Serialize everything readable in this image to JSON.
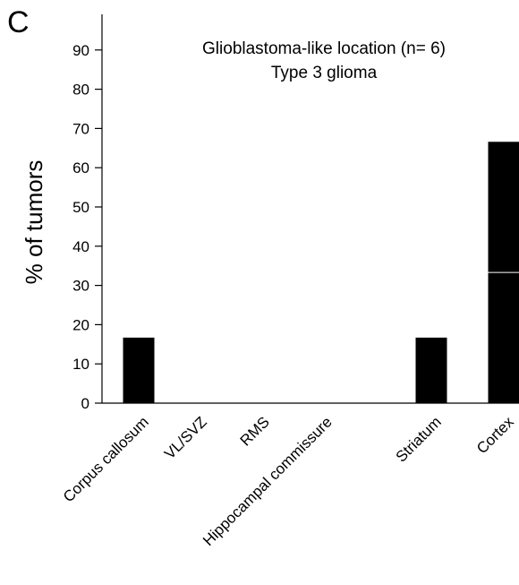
{
  "panel_label": "C",
  "chart_data": {
    "type": "bar",
    "title_lines": [
      "Glioblastoma-like location (n= 6)",
      "Type 3 glioma"
    ],
    "ylabel": "% of tumors",
    "xlabel": "",
    "ylim": [
      0,
      100
    ],
    "yticks": [
      0,
      10,
      20,
      30,
      40,
      50,
      60,
      70,
      80,
      90
    ],
    "grid": false,
    "categories": [
      "Corpus callosum",
      "VL/SVZ",
      "RMS",
      "Hippocampal commissure",
      "Striatum",
      "Cortex"
    ],
    "values": [
      16.7,
      0,
      0,
      0,
      16.7,
      66.7
    ],
    "stacked_segments": [
      [
        16.7
      ],
      [
        0
      ],
      [
        0
      ],
      [
        0
      ],
      [
        16.7
      ],
      [
        33.3,
        33.3
      ]
    ],
    "bar_color": "#000000",
    "segment_divider_color": "#ffffff"
  }
}
